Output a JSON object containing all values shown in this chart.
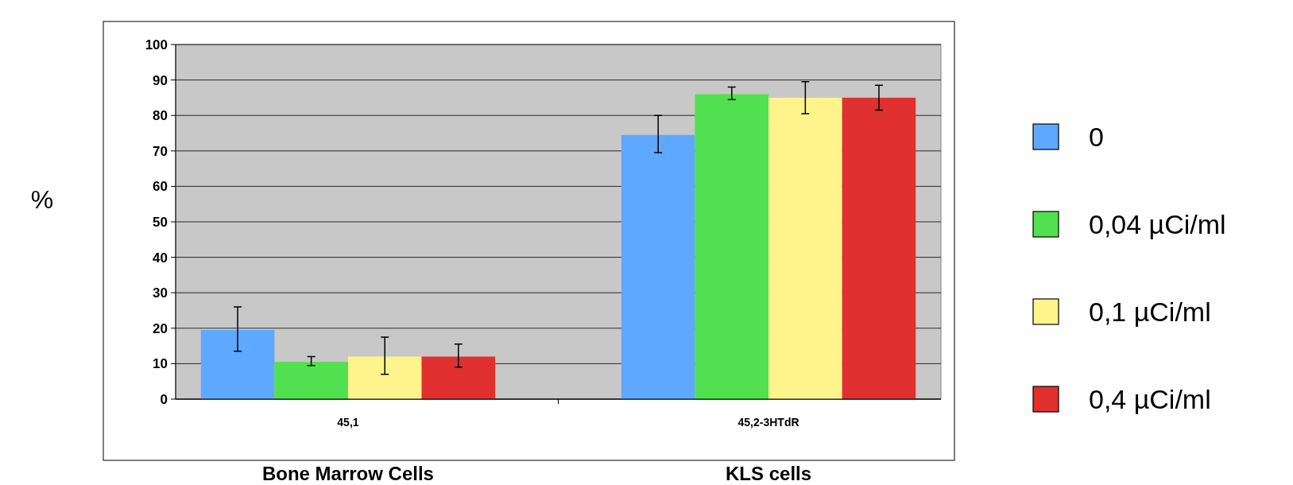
{
  "chart_data": {
    "type": "bar",
    "ylabel": "%",
    "categories": [
      "45,1",
      "45,2-3HTdR"
    ],
    "annotations": [
      "Bone Marrow Cells",
      "KLS cells"
    ],
    "series": [
      {
        "name": "0",
        "color": "#5fa8ff",
        "values": [
          19.5,
          74.5
        ],
        "errors": [
          [
            13.5,
            26
          ],
          [
            69.5,
            80
          ]
        ]
      },
      {
        "name": "0,04 µCi/ml",
        "color": "#50e050",
        "values": [
          10.5,
          86
        ],
        "errors": [
          [
            9.5,
            12
          ],
          [
            84.5,
            88
          ]
        ]
      },
      {
        "name": "0,1 µCi/ml",
        "color": "#fff48c",
        "values": [
          12,
          85
        ],
        "errors": [
          [
            7,
            17.5
          ],
          [
            80.5,
            89.5
          ]
        ]
      },
      {
        "name": "0,4 µCi/ml",
        "color": "#e0302f",
        "values": [
          12,
          85
        ],
        "errors": [
          [
            9,
            15.5
          ],
          [
            81.5,
            88.5
          ]
        ]
      }
    ],
    "ylim": [
      0,
      100
    ],
    "yticks": [
      0,
      10,
      20,
      30,
      40,
      50,
      60,
      70,
      80,
      90,
      100
    ],
    "grid": "y",
    "legend": "right"
  }
}
